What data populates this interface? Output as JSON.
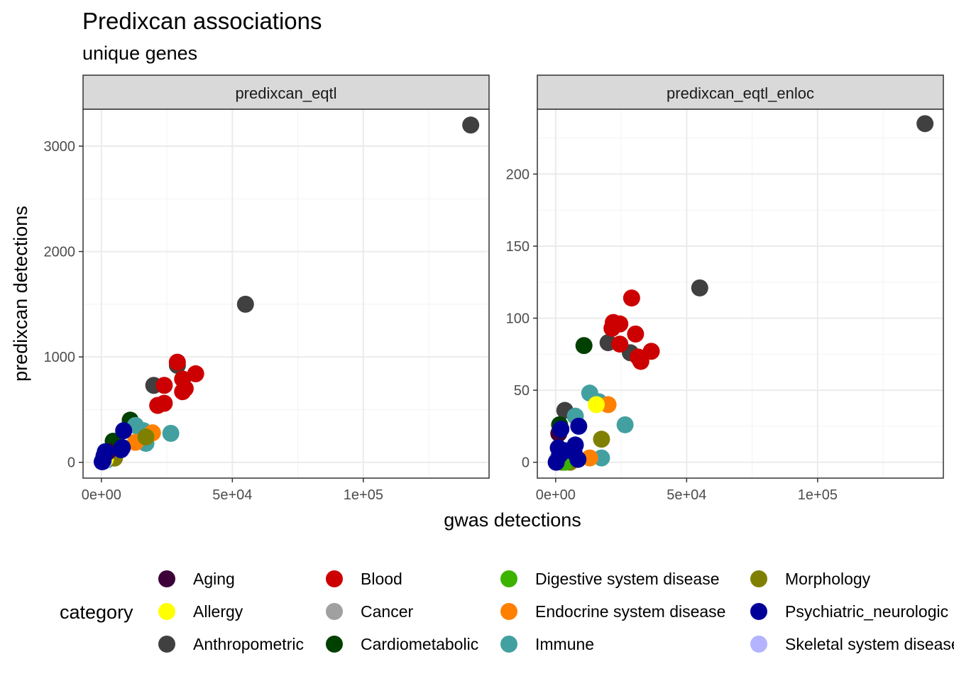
{
  "title": "Predixcan associations",
  "subtitle": "unique genes",
  "chart_data": {
    "type": "scatter",
    "xlabel": "gwas detections",
    "ylabel": "predixcan detections",
    "legend": {
      "title": "category",
      "position": "bottom",
      "entries": [
        {
          "name": "Aging",
          "color": "#3d0039"
        },
        {
          "name": "Allergy",
          "color": "#ffff00"
        },
        {
          "name": "Anthropometric",
          "color": "#404040"
        },
        {
          "name": "Blood",
          "color": "#cc0000"
        },
        {
          "name": "Cancer",
          "color": "#a0a0a0"
        },
        {
          "name": "Cardiometabolic",
          "color": "#004000"
        },
        {
          "name": "Digestive system disease",
          "color": "#3cb300"
        },
        {
          "name": "Endocrine system disease",
          "color": "#ff8000"
        },
        {
          "name": "Immune",
          "color": "#43a0a0"
        },
        {
          "name": "Morphology",
          "color": "#808000"
        },
        {
          "name": "Psychiatric_neurologic",
          "color": "#000099"
        },
        {
          "name": "Skeletal system disease",
          "color": "#b3b3ff"
        }
      ]
    },
    "panels": [
      {
        "strip": "predixcan_eqtl",
        "xlim": [
          -7000,
          148000
        ],
        "ylim": [
          -150,
          3350
        ],
        "xticks": [
          0,
          50000,
          100000
        ],
        "xtick_labels": [
          "0e+00",
          "5e+04",
          "1e+05"
        ],
        "yticks": [
          0,
          1000,
          2000,
          3000
        ],
        "ytick_labels": [
          "0",
          "1000",
          "2000",
          "3000"
        ],
        "points": [
          {
            "x": 141000,
            "y": 3200,
            "c": "Anthropometric"
          },
          {
            "x": 55000,
            "y": 1500,
            "c": "Anthropometric"
          },
          {
            "x": 29000,
            "y": 920,
            "c": "Anthropometric"
          },
          {
            "x": 20000,
            "y": 730,
            "c": "Anthropometric"
          },
          {
            "x": 4000,
            "y": 130,
            "c": "Anthropometric"
          },
          {
            "x": 29000,
            "y": 950,
            "c": "Blood"
          },
          {
            "x": 36000,
            "y": 840,
            "c": "Blood"
          },
          {
            "x": 31000,
            "y": 790,
            "c": "Blood"
          },
          {
            "x": 24000,
            "y": 730,
            "c": "Blood"
          },
          {
            "x": 32000,
            "y": 700,
            "c": "Blood"
          },
          {
            "x": 31000,
            "y": 670,
            "c": "Blood"
          },
          {
            "x": 24000,
            "y": 560,
            "c": "Blood"
          },
          {
            "x": 21500,
            "y": 540,
            "c": "Blood"
          },
          {
            "x": 11000,
            "y": 400,
            "c": "Cardiometabolic"
          },
          {
            "x": 4500,
            "y": 200,
            "c": "Cardiometabolic"
          },
          {
            "x": 1500,
            "y": 60,
            "c": "Cardiometabolic"
          },
          {
            "x": 26500,
            "y": 275,
            "c": "Immune"
          },
          {
            "x": 13000,
            "y": 350,
            "c": "Immune"
          },
          {
            "x": 16000,
            "y": 300,
            "c": "Immune"
          },
          {
            "x": 17000,
            "y": 180,
            "c": "Immune"
          },
          {
            "x": 2000,
            "y": 20,
            "c": "Immune"
          },
          {
            "x": 19500,
            "y": 280,
            "c": "Endocrine system disease"
          },
          {
            "x": 13000,
            "y": 190,
            "c": "Endocrine system disease"
          },
          {
            "x": 17000,
            "y": 240,
            "c": "Morphology"
          },
          {
            "x": 5000,
            "y": 40,
            "c": "Morphology"
          },
          {
            "x": 1500,
            "y": 30,
            "c": "Allergy"
          },
          {
            "x": 500,
            "y": 10,
            "c": "Digestive system disease"
          },
          {
            "x": 2500,
            "y": 100,
            "c": "Aging"
          },
          {
            "x": 800,
            "y": 8,
            "c": "Skeletal system disease"
          },
          {
            "x": 700,
            "y": 15,
            "c": "Cancer"
          },
          {
            "x": 8500,
            "y": 300,
            "c": "Psychiatric_neurologic"
          },
          {
            "x": 8000,
            "y": 140,
            "c": "Psychiatric_neurologic"
          },
          {
            "x": 7500,
            "y": 120,
            "c": "Psychiatric_neurologic"
          },
          {
            "x": 1500,
            "y": 100,
            "c": "Psychiatric_neurologic"
          },
          {
            "x": 1000,
            "y": 60,
            "c": "Psychiatric_neurologic"
          },
          {
            "x": 600,
            "y": 20,
            "c": "Psychiatric_neurologic"
          },
          {
            "x": 300,
            "y": 5,
            "c": "Psychiatric_neurologic"
          }
        ]
      },
      {
        "strip": "predixcan_eqtl_enloc",
        "xlim": [
          -7000,
          148000
        ],
        "ylim": [
          -11,
          245
        ],
        "xticks": [
          0,
          50000,
          100000
        ],
        "xtick_labels": [
          "0e+00",
          "5e+04",
          "1e+05"
        ],
        "yticks": [
          0,
          50,
          100,
          150,
          200
        ],
        "ytick_labels": [
          "0",
          "50",
          "100",
          "150",
          "200"
        ],
        "points": [
          {
            "x": 141000,
            "y": 235,
            "c": "Anthropometric"
          },
          {
            "x": 55000,
            "y": 121,
            "c": "Anthropometric"
          },
          {
            "x": 20000,
            "y": 83,
            "c": "Anthropometric"
          },
          {
            "x": 28500,
            "y": 76,
            "c": "Anthropometric"
          },
          {
            "x": 3500,
            "y": 36,
            "c": "Anthropometric"
          },
          {
            "x": 29000,
            "y": 114,
            "c": "Blood"
          },
          {
            "x": 22000,
            "y": 97,
            "c": "Blood"
          },
          {
            "x": 24500,
            "y": 96,
            "c": "Blood"
          },
          {
            "x": 21500,
            "y": 93,
            "c": "Blood"
          },
          {
            "x": 30500,
            "y": 89,
            "c": "Blood"
          },
          {
            "x": 24500,
            "y": 82,
            "c": "Blood"
          },
          {
            "x": 36500,
            "y": 77,
            "c": "Blood"
          },
          {
            "x": 31500,
            "y": 73,
            "c": "Blood"
          },
          {
            "x": 32500,
            "y": 70,
            "c": "Blood"
          },
          {
            "x": 10800,
            "y": 81,
            "c": "Cardiometabolic"
          },
          {
            "x": 1500,
            "y": 26,
            "c": "Cardiometabolic"
          },
          {
            "x": 1000,
            "y": 3,
            "c": "Cardiometabolic"
          },
          {
            "x": 13000,
            "y": 48,
            "c": "Immune"
          },
          {
            "x": 16500,
            "y": 42,
            "c": "Immune"
          },
          {
            "x": 26500,
            "y": 26,
            "c": "Immune"
          },
          {
            "x": 7500,
            "y": 32,
            "c": "Immune"
          },
          {
            "x": 17500,
            "y": 3,
            "c": "Immune"
          },
          {
            "x": 20000,
            "y": 40,
            "c": "Endocrine system disease"
          },
          {
            "x": 13000,
            "y": 3,
            "c": "Endocrine system disease"
          },
          {
            "x": 15500,
            "y": 40,
            "c": "Allergy"
          },
          {
            "x": 17500,
            "y": 16,
            "c": "Morphology"
          },
          {
            "x": 5500,
            "y": 0,
            "c": "Morphology"
          },
          {
            "x": 2500,
            "y": 0,
            "c": "Morphology"
          },
          {
            "x": 1200,
            "y": 20,
            "c": "Aging"
          },
          {
            "x": 600,
            "y": 2,
            "c": "Cancer"
          },
          {
            "x": 1500,
            "y": 1,
            "c": "Skeletal system disease"
          },
          {
            "x": 3500,
            "y": 0,
            "c": "Digestive system disease"
          },
          {
            "x": 8800,
            "y": 25,
            "c": "Psychiatric_neurologic"
          },
          {
            "x": 2000,
            "y": 23,
            "c": "Psychiatric_neurologic"
          },
          {
            "x": 7500,
            "y": 12,
            "c": "Psychiatric_neurologic"
          },
          {
            "x": 1000,
            "y": 10,
            "c": "Psychiatric_neurologic"
          },
          {
            "x": 3500,
            "y": 8,
            "c": "Psychiatric_neurologic"
          },
          {
            "x": 7000,
            "y": 7,
            "c": "Psychiatric_neurologic"
          },
          {
            "x": 1500,
            "y": 5,
            "c": "Psychiatric_neurologic"
          },
          {
            "x": 8500,
            "y": 2,
            "c": "Psychiatric_neurologic"
          },
          {
            "x": 200,
            "y": 0,
            "c": "Psychiatric_neurologic"
          }
        ]
      }
    ]
  }
}
